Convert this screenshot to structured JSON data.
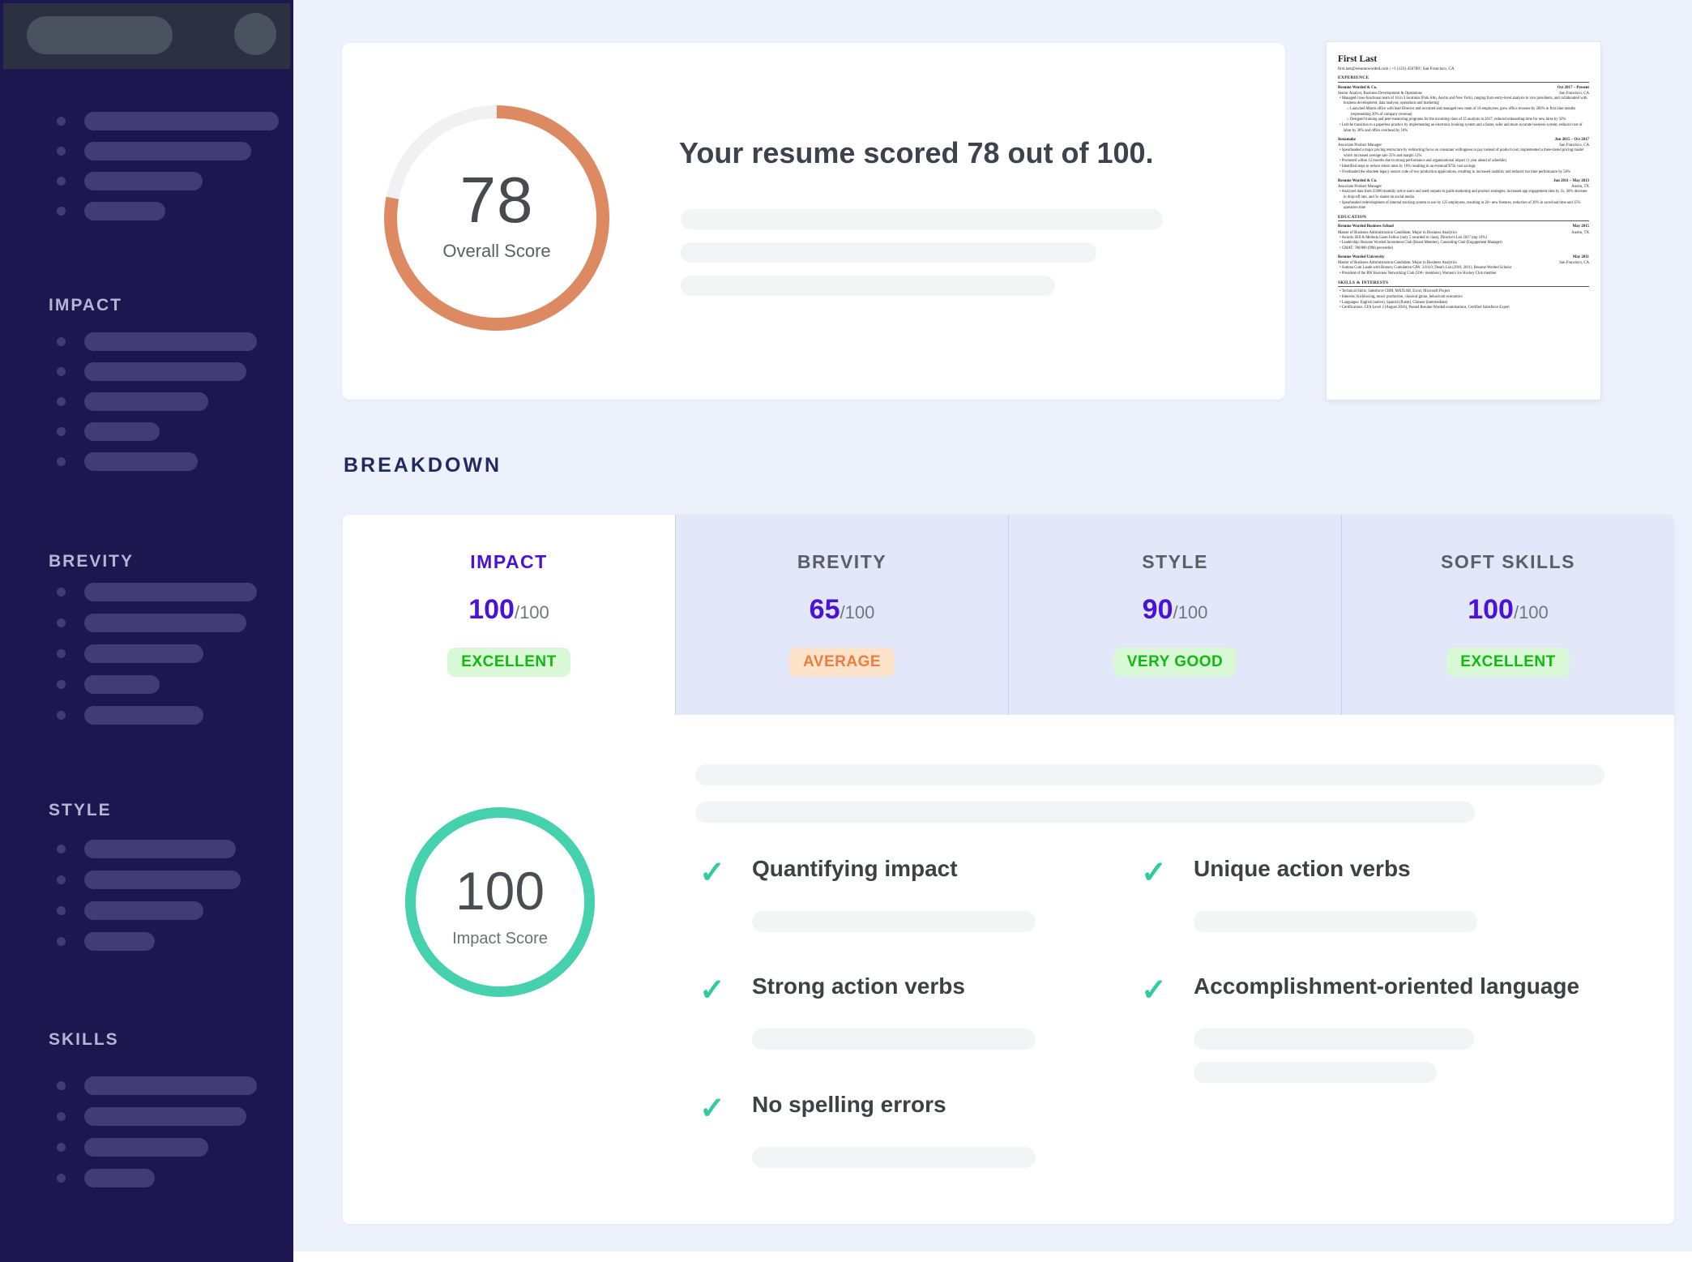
{
  "colors": {
    "accent_purple": "#4a11da",
    "tab_inactive_title": "#5a5e65",
    "gauge_orange": "#dd8a62",
    "gauge_track": "#f1f1f4",
    "teal_ring": "#45d1ad",
    "check_teal": "#2ecc9e",
    "green_badge_bg": "#d9f8d6",
    "green_badge_fg": "#12b912",
    "orange_badge_bg": "#fce3ca",
    "orange_badge_fg": "#ed7d40",
    "sidebar_bg": "#1e164f",
    "sidebar_header_bg": "#2b3140"
  },
  "sidebar": {
    "top_items": [
      240,
      206,
      146,
      100
    ],
    "sections": [
      {
        "label": "IMPACT",
        "items": [
          213,
          200,
          153,
          93,
          140
        ]
      },
      {
        "label": "BREVITY",
        "items": [
          213,
          200,
          147,
          93,
          147
        ]
      },
      {
        "label": "STYLE",
        "items": [
          187,
          193,
          147,
          87
        ]
      },
      {
        "label": "SKILLS",
        "items": [
          213,
          200,
          153,
          87
        ]
      }
    ]
  },
  "hero": {
    "headline": "Your resume scored 78 out of 100.",
    "score": "78",
    "score_label": "Overall Score",
    "gauge_percent": 78,
    "placeholder_lines": [
      595,
      513,
      462
    ]
  },
  "breakdown": {
    "title": "BREAKDOWN",
    "tabs": [
      {
        "label": "IMPACT",
        "score": "100",
        "denom": "/100",
        "rating": "EXCELLENT",
        "tone": "green",
        "active": true
      },
      {
        "label": "BREVITY",
        "score": "65",
        "denom": "/100",
        "rating": "AVERAGE",
        "tone": "orange",
        "active": false
      },
      {
        "label": "STYLE",
        "score": "90",
        "denom": "/100",
        "rating": "VERY GOOD",
        "tone": "green",
        "active": false
      },
      {
        "label": "SOFT SKILLS",
        "score": "100",
        "denom": "/100",
        "rating": "EXCELLENT",
        "tone": "green",
        "active": false
      }
    ],
    "panel": {
      "top_lines": [
        1122,
        962
      ],
      "score": "100",
      "score_label": "Impact Score",
      "checks": [
        {
          "label": "Quantifying impact",
          "lines": [
            350
          ]
        },
        {
          "label": "Unique action verbs",
          "lines": [
            350
          ]
        },
        {
          "label": "Strong action verbs",
          "lines": [
            350
          ]
        },
        {
          "label": "Accomplishment-oriented language",
          "lines": [
            346,
            300
          ]
        },
        {
          "label": "No spelling errors",
          "lines": [
            350
          ]
        }
      ]
    }
  },
  "resume_preview": {
    "name": "First Last",
    "contact": "first.last@resumeworded.com  |  +1 (123) 456789  |  San Francisco, CA",
    "sections": [
      {
        "heading": "EXPERIENCE",
        "entries": [
          {
            "left": "Resume Worded & Co.",
            "right": "Oct 2017 – Present",
            "sub_left": "Senior Analyst, Business Development & Operations",
            "sub_right": "San Francisco, CA",
            "bullets": [
              {
                "i": 0,
                "t": "Managed cross-functional team of 10 in 3 locations (Palo Alto, Austin and New York), ranging from entry-level analysts to vice presidents, and collaborated with business development, data analysis, operations and marketing"
              },
              {
                "i": 1,
                "t": "Launched Miami office with lead Director and recruited and managed new team of 10 employees; grew office revenue by 200% in first nine months (representing 20% of company revenue)"
              },
              {
                "i": 1,
                "t": "Designed training and peer-mentoring programs for the incoming class of 25 analysts in 2017; reduced onboarding time for new hires by 50%"
              },
              {
                "i": 0,
                "t": "Led the transition to a paperless practice by implementing an electronic booking system and a faster, safer and more accurate business system; reduced cost of labor by 30% and office overhead by 10%"
              }
            ]
          },
          {
            "left": "Instamake",
            "right": "Jun 2015 – Oct 2017",
            "sub_left": "Associate Product Manager",
            "sub_right": "San Francisco, CA",
            "bullets": [
              {
                "i": 0,
                "t": "Spearheaded a major pricing restructure by redirecting focus on consumer willingness to pay instead of product cost; implemented a three-tiered pricing model which increased average sale 35% and margin 12%"
              },
              {
                "i": 0,
                "t": "Promoted within 12 months due to strong performance and organizational impact (1 year ahead of schedule)"
              },
              {
                "i": 0,
                "t": "Identified steps to reduce return rates by 10% resulting in an eventual $75k cost savings"
              },
              {
                "i": 0,
                "t": "Overhauled the obsolete legacy source code of two production applications, resulting in increased usability and reduced run time performance by 50%"
              }
            ]
          },
          {
            "left": "Resume Worded & Co.",
            "right": "Jun 2011 – May 2013",
            "sub_left": "Associate Product Manager",
            "sub_right": "Austin, TX",
            "bullets": [
              {
                "i": 0,
                "t": "Analyzed data from 25000 monthly active users and used outputs to guide marketing and product strategies; increased app engagement time by 2x, 30% decrease in drop-off rate, and 3x shares on social media"
              },
              {
                "i": 0,
                "t": "Spearheaded redevelopment of internal tracking system in use by 125 employees, resulting in 20+ new features, reduction of 20% in save/load time and 15% operation time"
              }
            ]
          }
        ]
      },
      {
        "heading": "EDUCATION",
        "entries": [
          {
            "left": "Resume Worded Business School",
            "right": "May 2015",
            "sub_left": "Master of Business Administration Candidate; Major in Business Analytics",
            "sub_right": "Austin, TX",
            "bullets": [
              {
                "i": 0,
                "t": "Awards: Bill & Melinda Gates Fellow (only 5 awarded to class), Director's List 2017 (top 10%)"
              },
              {
                "i": 0,
                "t": "Leadership: Resume Worded Investment Club (Board Member), Consulting Club (Engagement Manager)"
              },
              {
                "i": 0,
                "t": "GMAT: 780/800 (99th percentile)"
              }
            ]
          },
          {
            "left": "Resume Worded University",
            "right": "May 2011",
            "sub_left": "Master of Business Administration Candidate; Major in Business Analytics",
            "sub_right": "San Francisco, CA",
            "bullets": [
              {
                "i": 0,
                "t": "Summa Cum Laude with Honors; Cumulative GPA: 3.8/4.0; Dean's List (2010, 2011), Resume Worded Scholar"
              },
              {
                "i": 0,
                "t": "President of the RW Business Networking Club (500+ members), Women's Ice Hockey Club member"
              }
            ]
          }
        ]
      },
      {
        "heading": "SKILLS & INTERESTS",
        "entries": [
          {
            "bullets": [
              {
                "i": 0,
                "t": "Technical Skills: Salesforce CRM, MATLAB, Excel, Microsoft Project"
              },
              {
                "i": 0,
                "t": "Interests: Kickboxing, music production, classical guitar, behavioral economics"
              },
              {
                "i": 0,
                "t": "Languages: English (native), Spanish (fluent), Chinese (intermediate)"
              },
              {
                "i": 0,
                "t": "Certifications: CFA Level 2 (August 2016), Passed Resume Worded examinations, Certified Salesforce Expert"
              }
            ]
          }
        ]
      }
    ]
  }
}
